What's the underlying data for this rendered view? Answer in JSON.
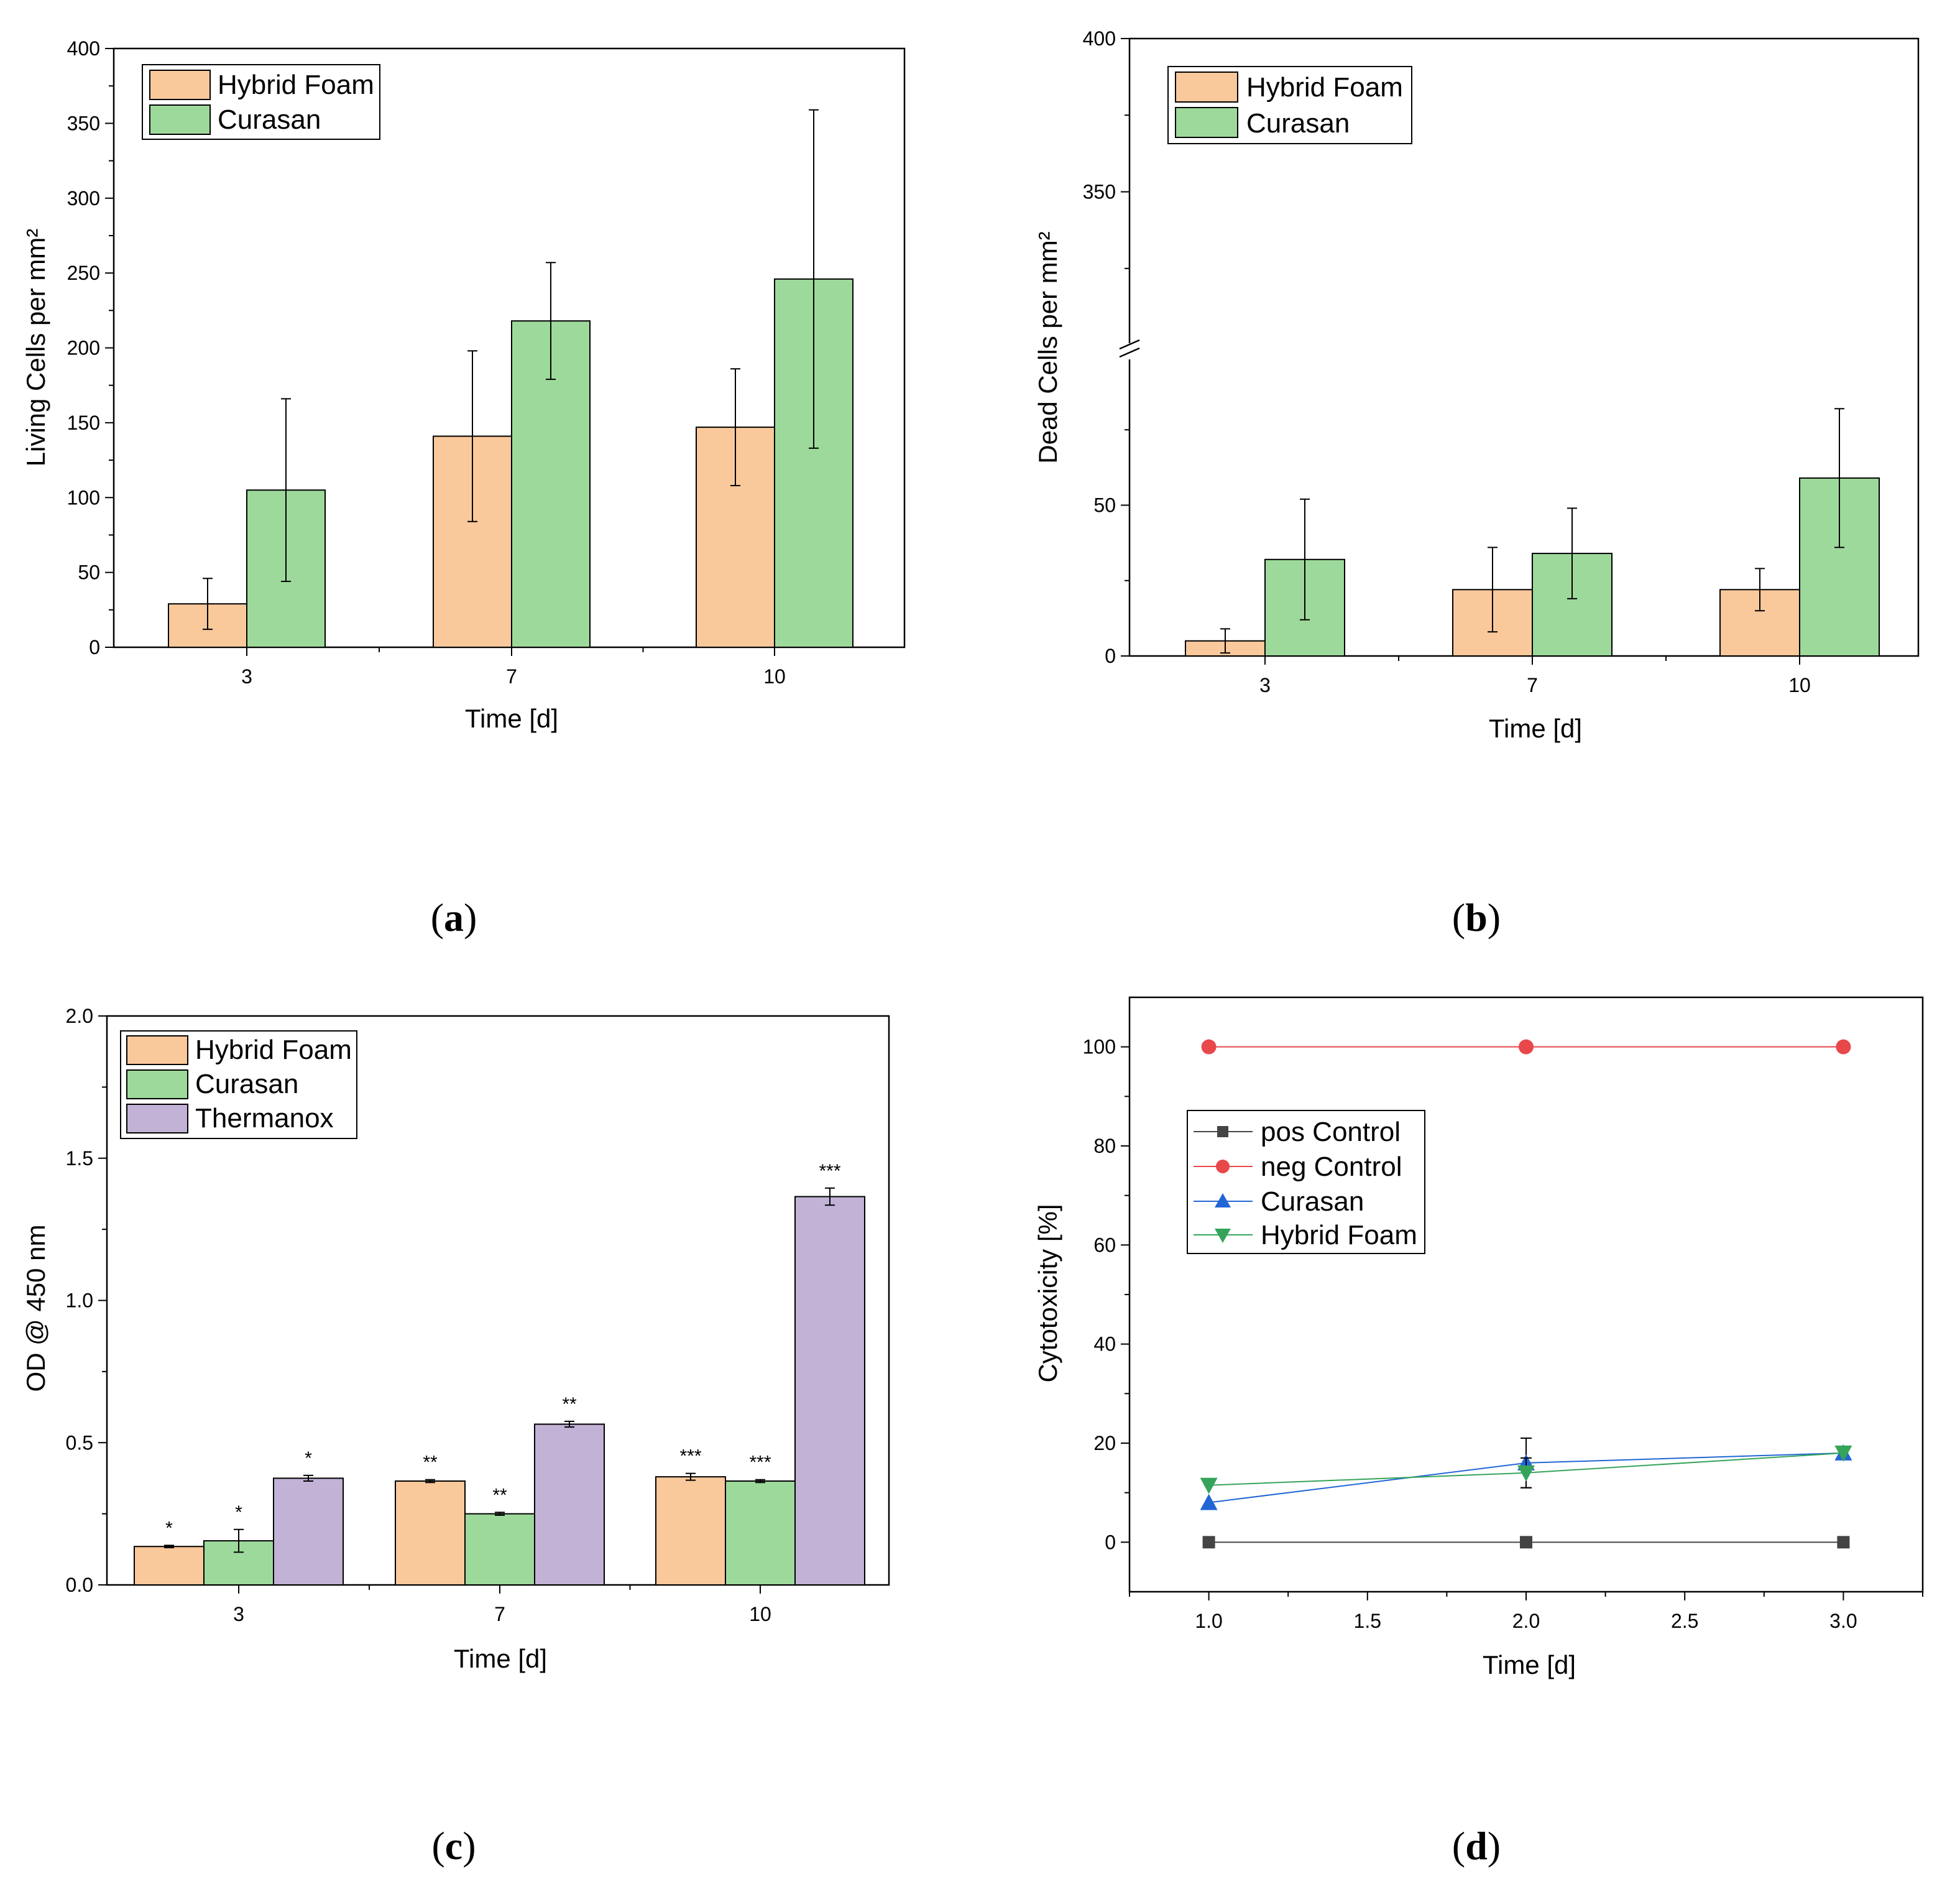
{
  "colors": {
    "hybrid": "#f9c89b",
    "curasan": "#9dd99b",
    "thermanox": "#c1b2d6",
    "pos": "#444444",
    "neg": "#e8484a",
    "cur_line": "#2166d4",
    "hyb_line": "#35a45a"
  },
  "chart_data": [
    {
      "panel": "a",
      "type": "bar",
      "categories": [
        "3",
        "7",
        "10"
      ],
      "series": [
        {
          "name": "Hybrid Foam",
          "values": [
            29,
            141,
            147
          ],
          "errors": [
            17,
            57,
            39
          ]
        },
        {
          "name": "Curasan",
          "values": [
            105,
            218,
            246
          ],
          "errors": [
            61,
            39,
            113
          ]
        }
      ],
      "xlabel": "Time [d]",
      "ylabel": "Living Cells per mm²",
      "ylim": [
        0,
        400
      ],
      "yticks": [
        0,
        50,
        100,
        150,
        200,
        250,
        300,
        350,
        400
      ],
      "ytick_labels": [
        "0",
        "50",
        "100",
        "150",
        "200",
        "250",
        "300",
        "350",
        "400"
      ],
      "legend": "top-left"
    },
    {
      "panel": "b",
      "type": "bar",
      "categories": [
        "3",
        "7",
        "10"
      ],
      "series": [
        {
          "name": "Hybrid Foam",
          "values": [
            5,
            22,
            22
          ],
          "errors": [
            4,
            14,
            7
          ]
        },
        {
          "name": "Curasan",
          "values": [
            32,
            34,
            59
          ],
          "errors": [
            20,
            15,
            23
          ]
        }
      ],
      "xlabel": "Time [d]",
      "ylabel": "Dead Cells per mm²",
      "ylim_lower": [
        0,
        100
      ],
      "ylim_upper": [
        300,
        400
      ],
      "axis_break": true,
      "yticks": [
        0,
        50,
        350,
        400
      ],
      "ytick_labels": [
        "0",
        "50",
        "350",
        "400"
      ],
      "legend": "top-left"
    },
    {
      "panel": "c",
      "type": "bar",
      "categories": [
        "3",
        "7",
        "10"
      ],
      "series": [
        {
          "name": "Hybrid Foam",
          "values": [
            0.135,
            0.365,
            0.38
          ],
          "errors": [
            0.004,
            0.005,
            0.012
          ],
          "annotations": [
            "*",
            "**",
            "***"
          ]
        },
        {
          "name": "Curasan",
          "values": [
            0.155,
            0.25,
            0.365
          ],
          "errors": [
            0.04,
            0.005,
            0.005
          ],
          "annotations": [
            "*",
            "**",
            "***"
          ]
        },
        {
          "name": "Thermanox",
          "values": [
            0.375,
            0.565,
            1.365
          ],
          "errors": [
            0.01,
            0.01,
            0.03
          ],
          "annotations": [
            "*",
            "**",
            "***"
          ]
        }
      ],
      "xlabel": "Time [d]",
      "ylabel": "OD @ 450 nm",
      "ylim": [
        0,
        2.0
      ],
      "yticks": [
        0,
        0.5,
        1.0,
        1.5,
        2.0
      ],
      "ytick_labels": [
        "0.0",
        "0.5",
        "1.0",
        "1.5",
        "2.0"
      ],
      "legend": "top-left"
    },
    {
      "panel": "d",
      "type": "line",
      "x": [
        1.0,
        2.0,
        3.0
      ],
      "series": [
        {
          "name": "pos Control",
          "values": [
            0,
            0,
            0
          ],
          "errors": [
            0,
            0,
            0
          ],
          "marker": "square"
        },
        {
          "name": "neg Control",
          "values": [
            100,
            100,
            100
          ],
          "errors": [
            0,
            0,
            0
          ],
          "marker": "circle"
        },
        {
          "name": "Curasan",
          "values": [
            8,
            16,
            18
          ],
          "errors": [
            0,
            5,
            0
          ],
          "marker": "triangle-up"
        },
        {
          "name": "Hybrid Foam",
          "values": [
            11.5,
            14,
            18
          ],
          "errors": [
            0,
            3,
            0
          ],
          "marker": "triangle-down"
        }
      ],
      "xlabel": "Time [d]",
      "ylabel": "Cytotoxicity [%]",
      "xlim": [
        0.75,
        3.25
      ],
      "ylim": [
        -10,
        110
      ],
      "xticks": [
        1.0,
        1.5,
        2.0,
        2.5,
        3.0
      ],
      "xtick_labels": [
        "1.0",
        "1.5",
        "2.0",
        "2.5",
        "3.0"
      ],
      "yticks": [
        0,
        20,
        40,
        60,
        80,
        100
      ],
      "ytick_labels": [
        "0",
        "20",
        "40",
        "60",
        "80",
        "100"
      ],
      "legend": "center-left"
    }
  ],
  "captions": {
    "a": "a",
    "b": "b",
    "c": "c",
    "d": "d"
  }
}
